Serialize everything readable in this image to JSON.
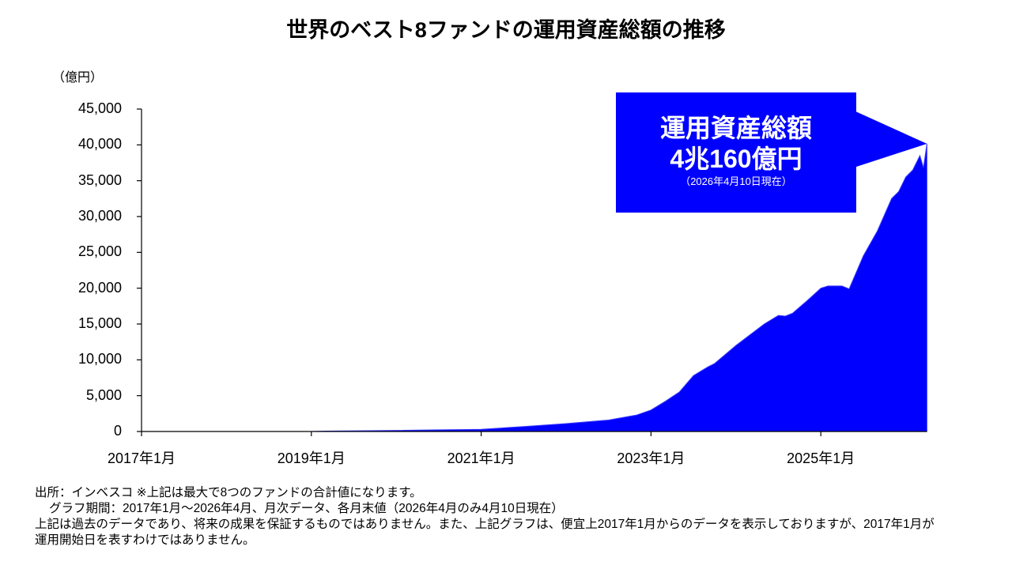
{
  "title": "世界のベスト8ファンドの運用資産総額の推移",
  "callout": {
    "heading": "運用資産総額",
    "value": "4兆160億円",
    "as_of": "（2026年4月10日現在）",
    "color": "#0000ff"
  },
  "notes": {
    "line1": "出所：インベスコ ※上記は最大で8つのファンドの合計値になります。",
    "line2": "グラフ期間：2017年1月～2026年4月、月次データ、各月末値（2026年4月のみ4月10日現在）",
    "line3": "上記は過去のデータであり、将来の成果を保証するものではありません。また、上記グラフは、便宜上2017年1月からのデータを表示しておりますが、2017年1月が",
    "line4": "運用開始日を表すわけではありません。"
  },
  "chart_data": {
    "type": "area",
    "title": "世界のベスト8ファンドの運用資産総額の推移",
    "ylabel": "（億円）",
    "xlabel": "",
    "ylim": [
      0,
      45000
    ],
    "yticks": [
      "0",
      "5,000",
      "10,000",
      "15,000",
      "20,000",
      "25,000",
      "30,000",
      "35,000",
      "40,000",
      "45,000"
    ],
    "ytick_values": [
      0,
      5000,
      10000,
      15000,
      20000,
      25000,
      30000,
      35000,
      40000,
      45000
    ],
    "xticks": [
      "2017年1月",
      "2019年1月",
      "2021年1月",
      "2023年1月",
      "2025年1月"
    ],
    "xtick_month_index": [
      0,
      24,
      48,
      72,
      96
    ],
    "x_range_months": [
      0,
      111
    ],
    "grid": false,
    "legend": null,
    "fill_color": "#0000ff",
    "series": [
      {
        "name": "運用資産総額（億円）",
        "points": [
          {
            "x": "2017-01",
            "m": 0,
            "y": 0
          },
          {
            "x": "2019-01",
            "m": 24,
            "y": 0
          },
          {
            "x": "2019-03",
            "m": 26,
            "y": 50
          },
          {
            "x": "2020-01",
            "m": 36,
            "y": 150
          },
          {
            "x": "2021-01",
            "m": 48,
            "y": 300
          },
          {
            "x": "2021-07",
            "m": 54,
            "y": 700
          },
          {
            "x": "2022-01",
            "m": 60,
            "y": 1100
          },
          {
            "x": "2022-07",
            "m": 66,
            "y": 1600
          },
          {
            "x": "2022-11",
            "m": 70,
            "y": 2300
          },
          {
            "x": "2023-01",
            "m": 72,
            "y": 3000
          },
          {
            "x": "2023-03",
            "m": 74,
            "y": 4200
          },
          {
            "x": "2023-05",
            "m": 76,
            "y": 5500
          },
          {
            "x": "2023-07",
            "m": 78,
            "y": 7800
          },
          {
            "x": "2023-09",
            "m": 80,
            "y": 9000
          },
          {
            "x": "2023-10",
            "m": 81,
            "y": 9500
          },
          {
            "x": "2024-01",
            "m": 84,
            "y": 12000
          },
          {
            "x": "2024-05",
            "m": 88,
            "y": 15000
          },
          {
            "x": "2024-07",
            "m": 90,
            "y": 16200
          },
          {
            "x": "2024-08",
            "m": 91,
            "y": 16100
          },
          {
            "x": "2024-09",
            "m": 92,
            "y": 16500
          },
          {
            "x": "2024-11",
            "m": 94,
            "y": 18200
          },
          {
            "x": "2025-01",
            "m": 96,
            "y": 20000
          },
          {
            "x": "2025-02",
            "m": 97,
            "y": 20300
          },
          {
            "x": "2025-04",
            "m": 99,
            "y": 20300
          },
          {
            "x": "2025-05",
            "m": 100,
            "y": 19900
          },
          {
            "x": "2025-07",
            "m": 102,
            "y": 24500
          },
          {
            "x": "2025-09",
            "m": 104,
            "y": 28000
          },
          {
            "x": "2025-11",
            "m": 106,
            "y": 32500
          },
          {
            "x": "2025-12",
            "m": 107,
            "y": 33500
          },
          {
            "x": "2026-01",
            "m": 108,
            "y": 35500
          },
          {
            "x": "2026-02",
            "m": 109,
            "y": 36500
          },
          {
            "x": "2026-03",
            "m": 110,
            "y": 38500
          },
          {
            "x": "2026-03b",
            "m": 110.5,
            "y": 36800
          },
          {
            "x": "2026-04",
            "m": 111,
            "y": 40160
          }
        ]
      }
    ],
    "annotations": [
      "運用資産総額 4兆160億円（2026年4月10日現在）"
    ]
  }
}
